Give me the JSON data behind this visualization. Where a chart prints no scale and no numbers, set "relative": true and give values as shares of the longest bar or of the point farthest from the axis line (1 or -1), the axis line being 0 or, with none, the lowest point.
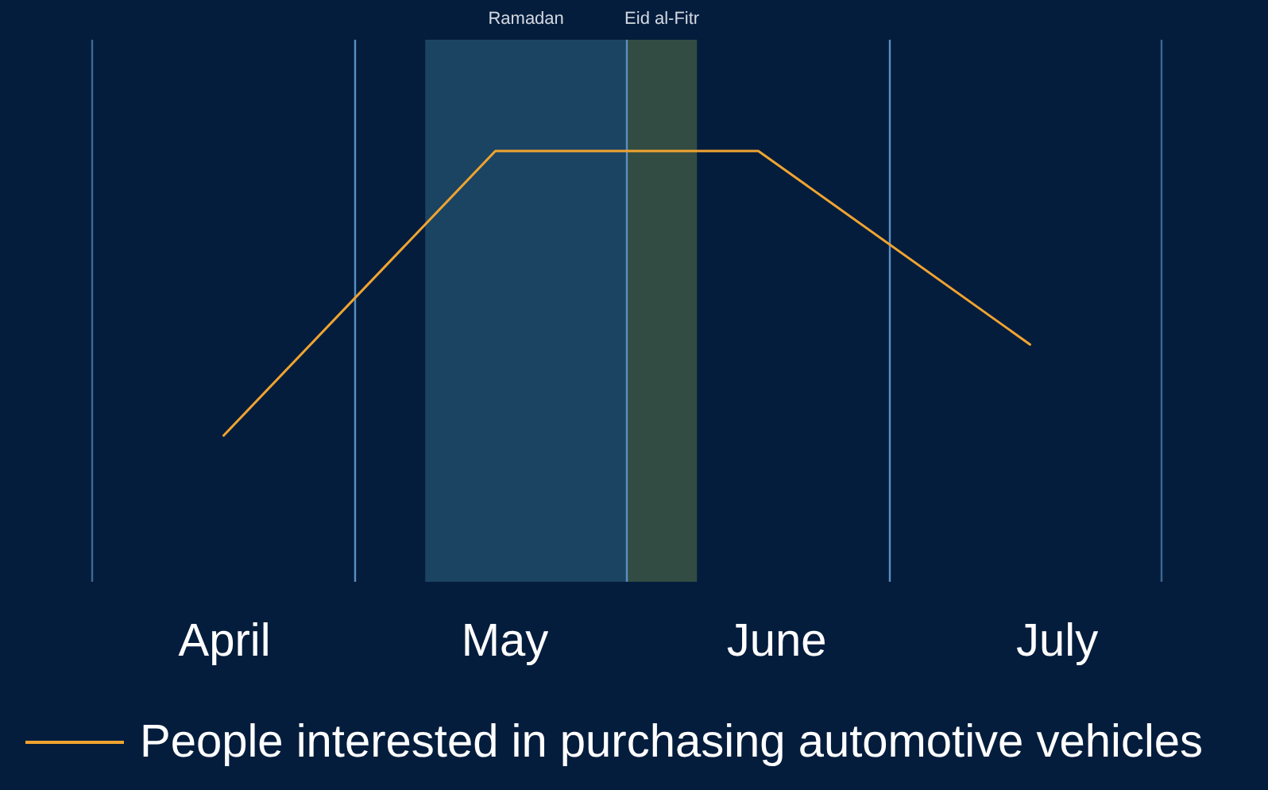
{
  "chart_data": {
    "type": "line",
    "relative": true,
    "x": [
      "--04-16",
      "--05-17",
      "--06-16",
      "--07-17"
    ],
    "xlim": [
      "--04-01",
      "--08-01"
    ],
    "xticks": [
      {
        "value": "--04-16",
        "label": "April"
      },
      {
        "value": "--05-18",
        "label": "May"
      },
      {
        "value": "--06-18",
        "label": "June"
      },
      {
        "value": "--07-20",
        "label": "July"
      }
    ],
    "series": [
      {
        "name": "People interested in purchasing automotive vehicles",
        "color": "#f0a430",
        "values": [
          0,
          1,
          1,
          0.32
        ]
      }
    ],
    "line_style": "solid",
    "legend": "bottom",
    "bands": [
      {
        "axis": "x",
        "from": "--05-09",
        "to": "--06-01",
        "label": "Ramadan",
        "color": "#1b4463"
      },
      {
        "axis": "x",
        "from": "--06-01",
        "to": "--06-09",
        "label": "Eid al-Fitr",
        "color": "#324c43"
      }
    ],
    "ref_lines": [
      {
        "axis": "x",
        "value": "--04-01",
        "color": "#3c6893"
      },
      {
        "axis": "x",
        "value": "--05-01",
        "color": "#5a8fc2"
      },
      {
        "axis": "x",
        "value": "--06-01",
        "color": "#5a8fc2"
      },
      {
        "axis": "x",
        "value": "--07-01",
        "color": "#5a8fc2"
      },
      {
        "axis": "x",
        "value": "--08-01",
        "color": "#3c6893"
      }
    ]
  }
}
